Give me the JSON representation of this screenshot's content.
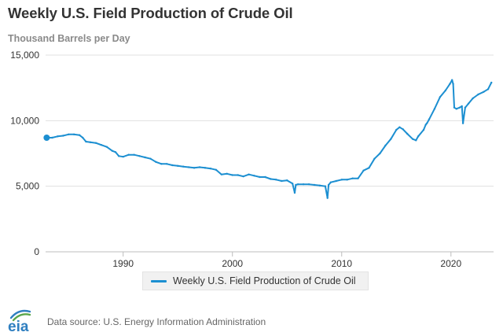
{
  "header": {
    "title": "Weekly U.S. Field Production of Crude Oil",
    "units_label": "Thousand Barrels per Day"
  },
  "chart_data": {
    "type": "line",
    "title": "Weekly U.S. Field Production of Crude Oil",
    "ylabel": "Thousand Barrels per Day",
    "xlabel": "",
    "xlim": [
      1982.9,
      2023.9
    ],
    "ylim": [
      0,
      15000
    ],
    "yticks": [
      0,
      5000,
      10000,
      15000
    ],
    "ytick_labels": [
      "0",
      "5,000",
      "10,000",
      "15,000"
    ],
    "xticks": [
      1990,
      2000,
      2010,
      2020
    ],
    "xtick_labels": [
      "1990",
      "2000",
      "2010",
      "2020"
    ],
    "grid": "horizontal",
    "legend_position": "bottom-center",
    "series": [
      {
        "name": "Weekly U.S. Field Production of Crude Oil",
        "color": "#1c8fd1",
        "x": [
          1983.0,
          1983.5,
          1984.0,
          1984.5,
          1985.0,
          1985.5,
          1986.0,
          1986.3,
          1986.6,
          1987.0,
          1987.5,
          1988.0,
          1988.5,
          1989.0,
          1989.3,
          1989.6,
          1990.0,
          1990.5,
          1991.0,
          1991.5,
          1992.0,
          1992.5,
          1993.0,
          1993.5,
          1994.0,
          1994.5,
          1995.0,
          1995.5,
          1996.0,
          1996.5,
          1997.0,
          1997.5,
          1998.0,
          1998.5,
          1999.0,
          1999.5,
          2000.0,
          2000.5,
          2001.0,
          2001.5,
          2002.0,
          2002.5,
          2003.0,
          2003.5,
          2004.0,
          2004.5,
          2005.0,
          2005.5,
          2005.7,
          2005.8,
          2006.0,
          2006.5,
          2007.0,
          2007.5,
          2008.0,
          2008.5,
          2008.7,
          2008.8,
          2009.0,
          2009.5,
          2010.0,
          2010.5,
          2011.0,
          2011.5,
          2012.0,
          2012.5,
          2013.0,
          2013.5,
          2014.0,
          2014.5,
          2015.0,
          2015.3,
          2015.6,
          2016.0,
          2016.5,
          2016.8,
          2017.0,
          2017.5,
          2017.7,
          2017.8,
          2018.0,
          2018.5,
          2019.0,
          2019.5,
          2019.9,
          2020.1,
          2020.2,
          2020.3,
          2020.5,
          2020.8,
          2021.0,
          2021.1,
          2021.3,
          2021.6,
          2022.0,
          2022.5,
          2023.0,
          2023.4,
          2023.7
        ],
        "values": [
          8700,
          8700,
          8800,
          8850,
          8950,
          8950,
          8900,
          8700,
          8400,
          8350,
          8300,
          8150,
          8000,
          7700,
          7600,
          7300,
          7250,
          7400,
          7400,
          7300,
          7200,
          7100,
          6850,
          6700,
          6700,
          6600,
          6550,
          6500,
          6450,
          6400,
          6450,
          6400,
          6350,
          6250,
          5900,
          5950,
          5850,
          5850,
          5750,
          5900,
          5800,
          5700,
          5700,
          5550,
          5500,
          5400,
          5450,
          5200,
          4500,
          5100,
          5150,
          5150,
          5150,
          5100,
          5050,
          5000,
          4100,
          5100,
          5300,
          5400,
          5500,
          5500,
          5600,
          5600,
          6200,
          6400,
          7100,
          7500,
          8100,
          8600,
          9300,
          9500,
          9350,
          9000,
          8600,
          8500,
          8800,
          9300,
          9700,
          9800,
          10100,
          10900,
          11800,
          12300,
          12800,
          13100,
          12800,
          11000,
          10900,
          11000,
          11100,
          9800,
          11000,
          11300,
          11700,
          12000,
          12200,
          12400,
          12900
        ],
        "start_marker": true
      }
    ]
  },
  "legend": {
    "label": "Weekly U.S. Field Production of Crude Oil",
    "color": "#1c8fd1"
  },
  "footer": {
    "logo_text": "eia",
    "source": "Data source: U.S. Energy Information Administration"
  },
  "colors": {
    "line": "#1c8fd1",
    "grid": "#e0e0e0",
    "axis_text": "#333333",
    "logo_blue": "#2f7fc0",
    "logo_green": "#5aa64b"
  }
}
